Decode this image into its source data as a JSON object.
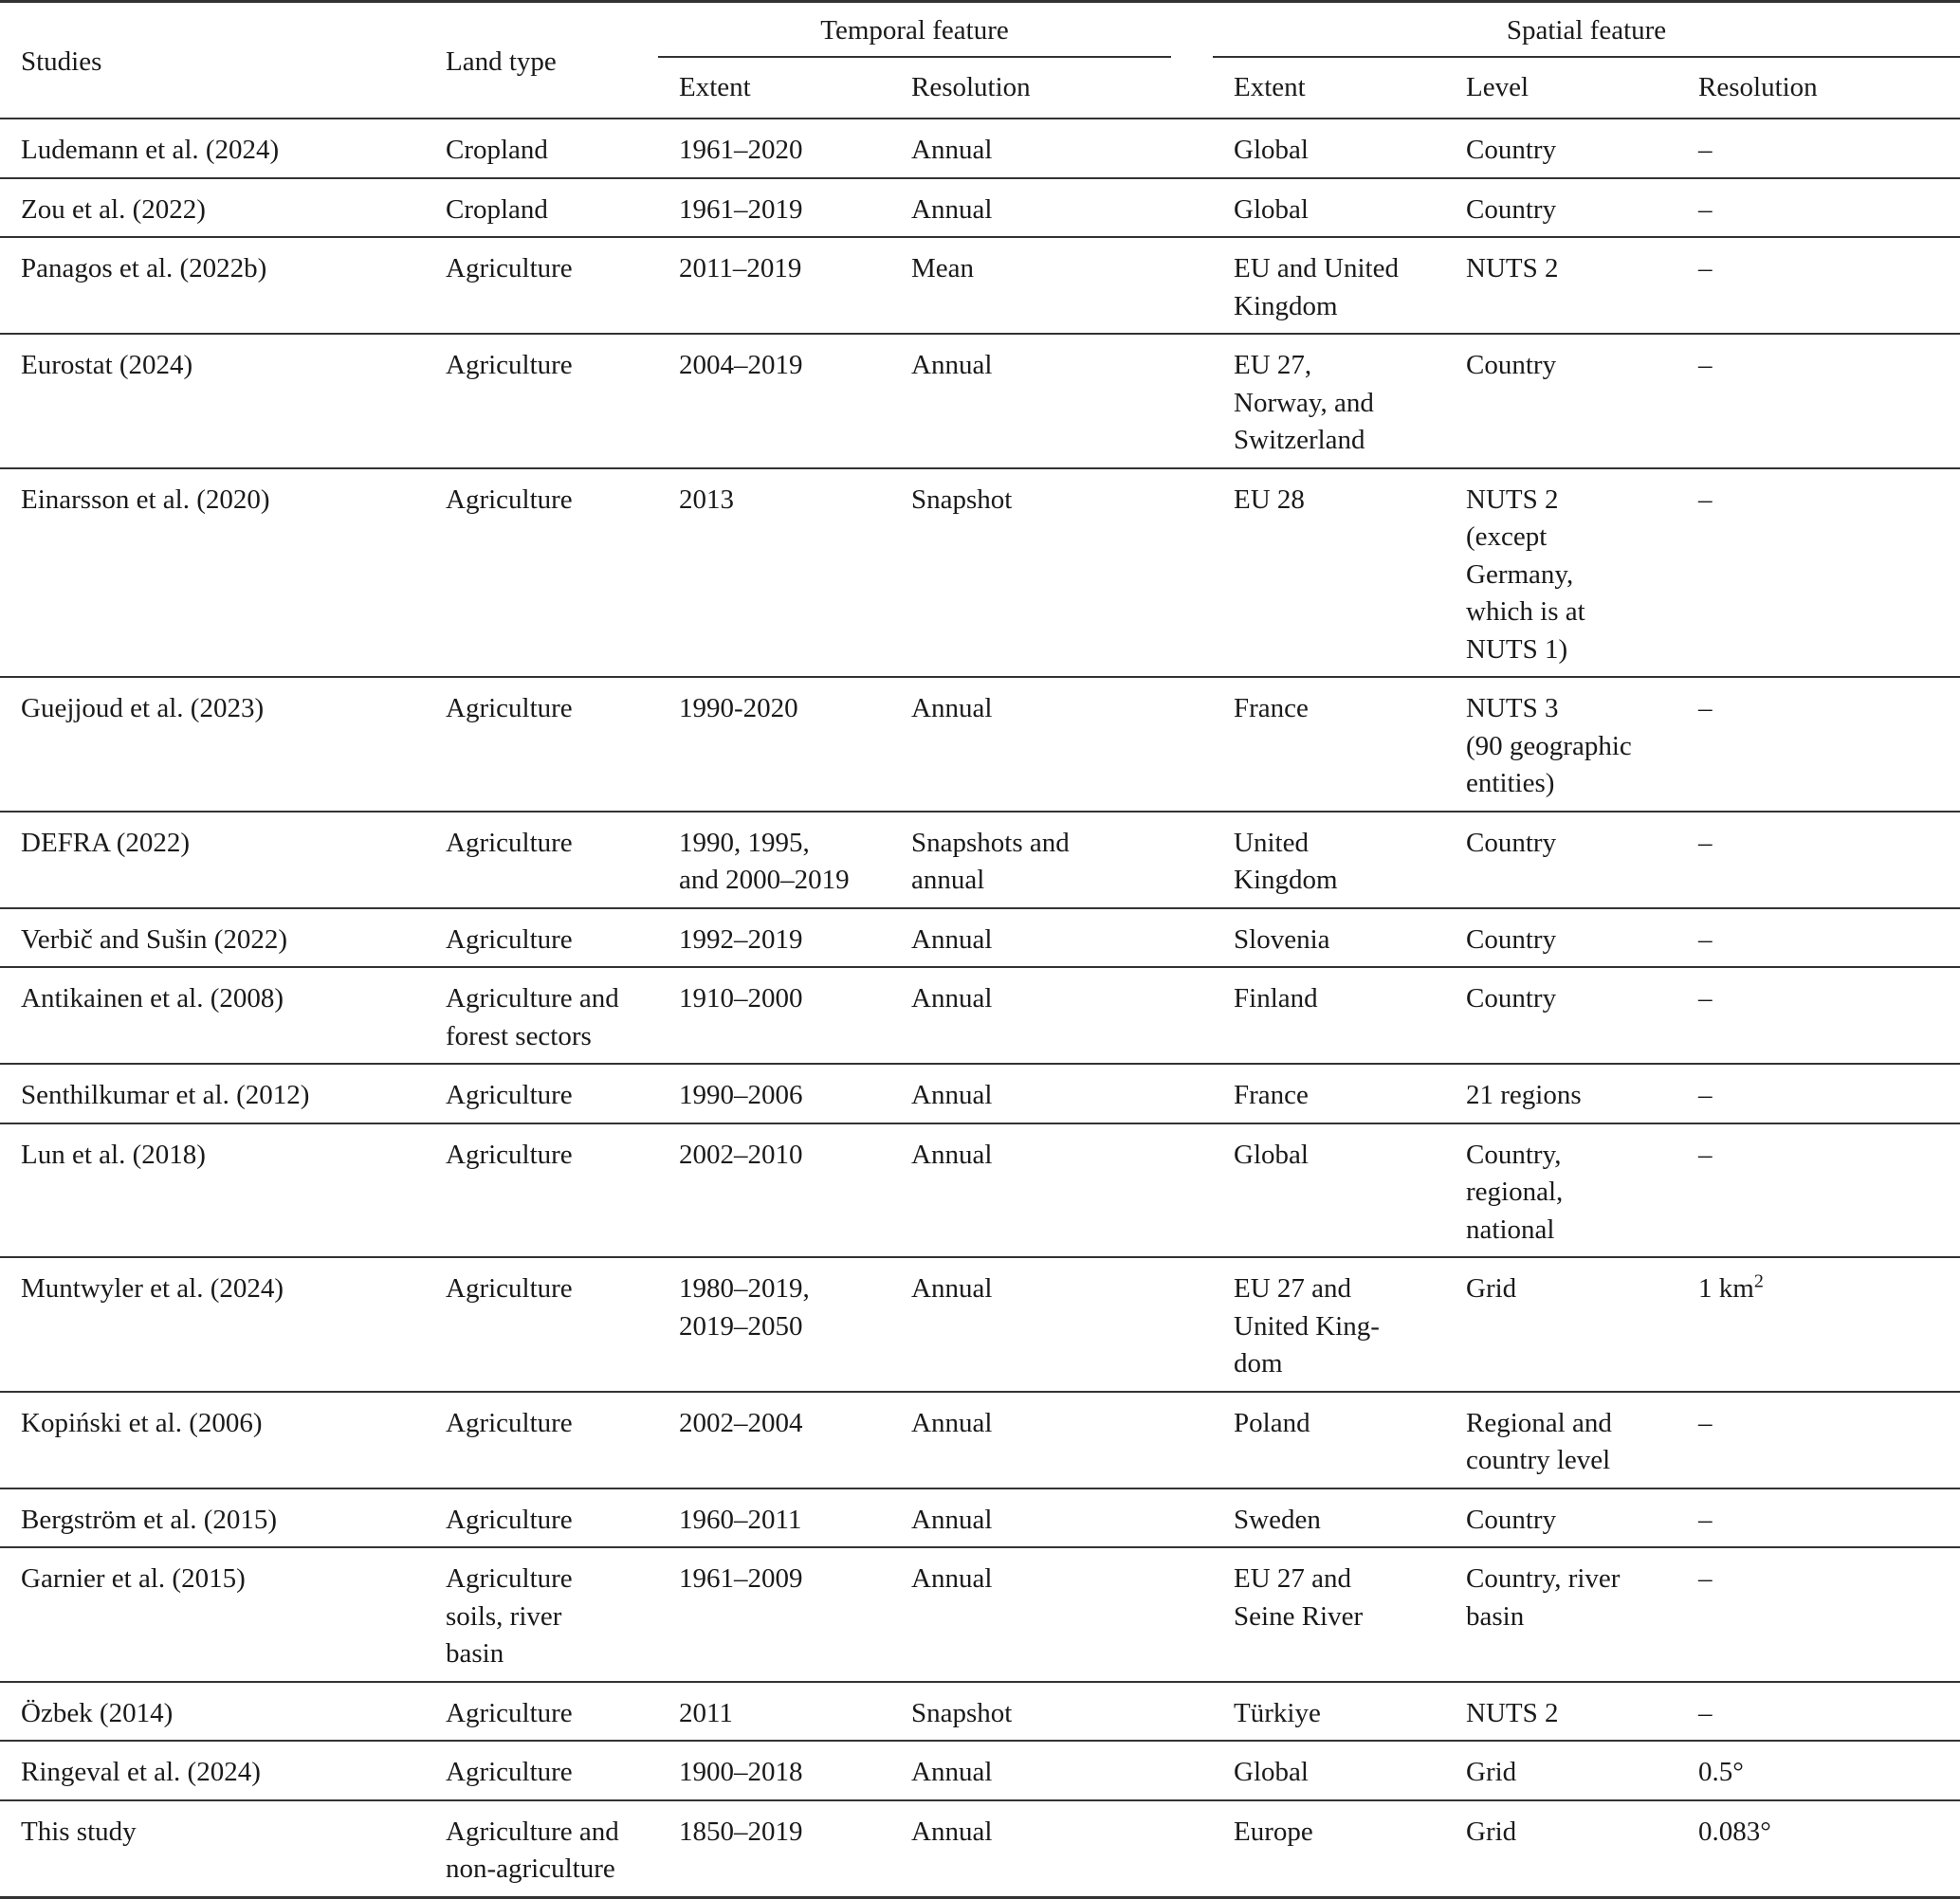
{
  "header": {
    "studies": "Studies",
    "land_type": "Land type",
    "temporal_feature": "Temporal feature",
    "spatial_feature": "Spatial feature",
    "temporal_extent": "Extent",
    "temporal_resolution": "Resolution",
    "spatial_extent": "Extent",
    "spatial_level": "Level",
    "spatial_resolution": "Resolution"
  },
  "rows": [
    [
      "Ludemann et al. (2024)",
      "Cropland",
      "1961–2020",
      "Annual",
      "Global",
      "Country",
      "–"
    ],
    [
      "Zou et al. (2022)",
      "Cropland",
      "1961–2019",
      "Annual",
      "Global",
      "Country",
      "–"
    ],
    [
      "Panagos et al. (2022b)",
      "Agriculture",
      "2011–2019",
      "Mean",
      "EU and United\nKingdom",
      "NUTS 2",
      "–"
    ],
    [
      "Eurostat (2024)",
      "Agriculture",
      "2004–2019",
      "Annual",
      "EU       27,\nNorway, and\nSwitzerland",
      "Country",
      "–"
    ],
    [
      "Einarsson et al. (2020)",
      "Agriculture",
      "2013",
      "Snapshot",
      "EU 28",
      "NUTS 2\n(except\nGermany,\nwhich is at\nNUTS 1)",
      "–"
    ],
    [
      "Guejjoud et al. (2023)",
      "Agriculture",
      "1990-2020",
      "Annual",
      "France",
      "NUTS 3\n(90 geographic\nentities)",
      "–"
    ],
    [
      "DEFRA (2022)",
      "Agriculture",
      "1990,        1995,\nand 2000–2019",
      "Snapshots and\nannual",
      "United\nKingdom",
      "Country",
      "–"
    ],
    [
      "Verbič and Sušin (2022)",
      "Agriculture",
      "1992–2019",
      "Annual",
      "Slovenia",
      "Country",
      "–"
    ],
    [
      "Antikainen et al. (2008)",
      "Agriculture and\nforest sectors",
      "1910–2000",
      "Annual",
      "Finland",
      "Country",
      "–"
    ],
    [
      "Senthilkumar et al. (2012)",
      "Agriculture",
      "1990–2006",
      "Annual",
      "France",
      "21 regions",
      "–"
    ],
    [
      "Lun et al. (2018)",
      "Agriculture",
      "2002–2010",
      "Annual",
      "Global",
      "Country,\nregional,\nnational",
      "–"
    ],
    [
      "Muntwyler et al. (2024)",
      "Agriculture",
      "1980–2019,\n2019–2050",
      "Annual",
      "EU     27     and\nUnited     King-\ndom",
      "Grid",
      "1 km"
    ],
    [
      "Kopiński et al. (2006)",
      "Agriculture",
      "2002–2004",
      "Annual",
      "Poland",
      "Regional and\ncountry level",
      "–"
    ],
    [
      "Bergström et al. (2015)",
      "Agriculture",
      "1960–2011",
      "Annual",
      "Sweden",
      "Country",
      "–"
    ],
    [
      "Garnier et al. (2015)",
      "Agriculture\nsoils, river\nbasin",
      "1961–2009",
      "Annual",
      "EU 27 and\nSeine River",
      "Country, river\nbasin",
      "–"
    ],
    [
      "Özbek (2014)",
      "Agriculture",
      "2011",
      "Snapshot",
      "Türkiye",
      "NUTS 2",
      "–"
    ],
    [
      "Ringeval et al. (2024)",
      "Agriculture",
      "1900–2018",
      "Annual",
      "Global",
      "Grid",
      "0.5°"
    ],
    [
      "This study",
      "Agriculture and\nnon-agriculture",
      "1850–2019",
      "Annual",
      "Europe",
      "Grid",
      "0.083°"
    ]
  ],
  "superscripts": {
    "11": "2"
  }
}
